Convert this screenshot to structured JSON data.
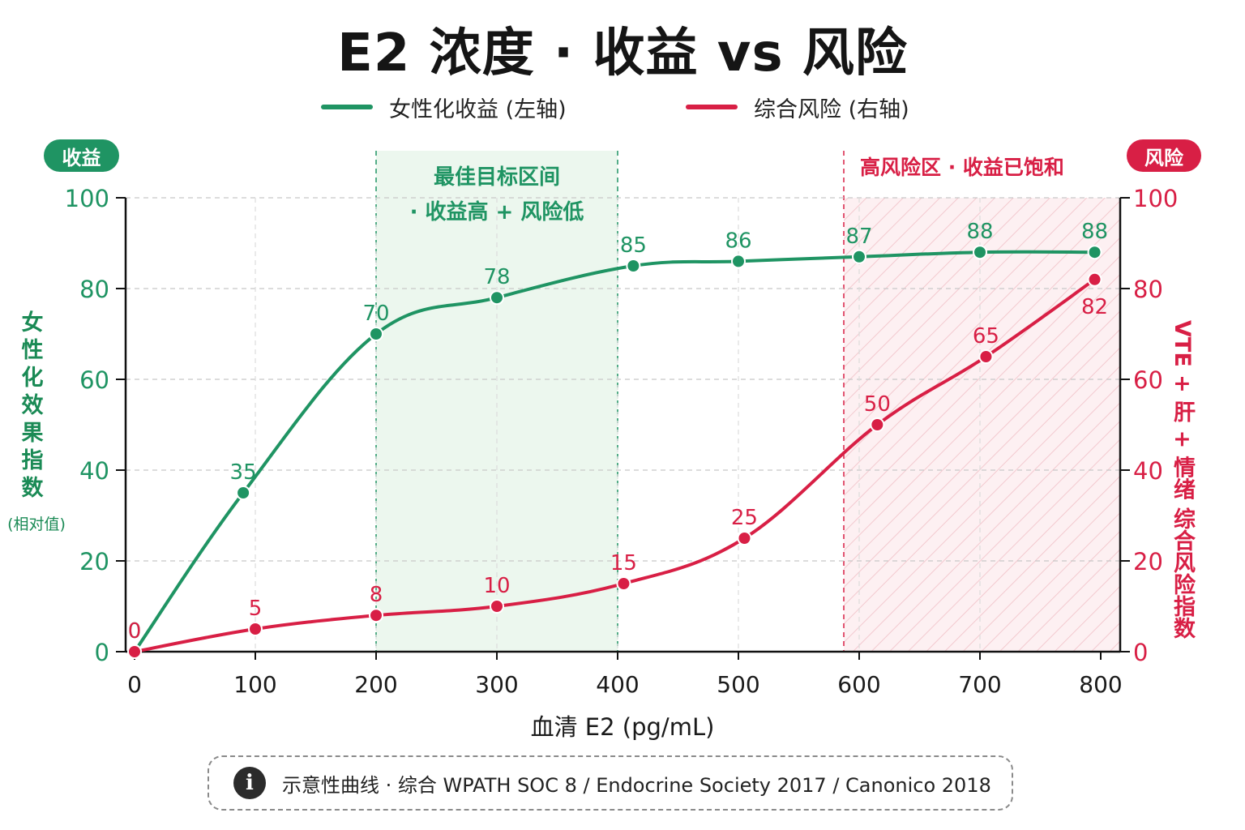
{
  "title": "E2 浓度 · 收益 vs 风险",
  "legend": [
    {
      "label": "女性化收益 (左轴)",
      "color": "#1f9463"
    },
    {
      "label": "综合风险 (右轴)",
      "color": "#d81f45"
    }
  ],
  "badges": {
    "left": "收益",
    "right": "风险"
  },
  "zones": {
    "optimal": {
      "label_line1": "最佳目标区间",
      "label_line2": "· 收益高 + 风险低",
      "x_range": [
        200,
        400
      ]
    },
    "high_risk": {
      "label": "高风险区 · 收益已饱和",
      "x_range": [
        600,
        800
      ]
    }
  },
  "y_left_title": "女性化效果指数",
  "y_left_subtitle": "(相对值)",
  "y_right_title": "VTE + 肝 + 情绪 综合风险指数",
  "x_title": "血清 E2 (pg/mL)",
  "note": "示意性曲线 · 综合 WPATH SOC 8 / Endocrine Society 2017 / Canonico 2018",
  "chart_data": {
    "type": "line",
    "title": "E2 浓度 · 收益 vs 风险",
    "xlabel": "血清 E2 (pg/mL)",
    "ylabel": "女性化效果指数 (相对值)",
    "y2label": "VTE + 肝 + 情绪 综合风险指数",
    "xlim": [
      0,
      800
    ],
    "ylim": [
      0,
      100
    ],
    "y2lim": [
      0,
      100
    ],
    "x_ticks": [
      0,
      100,
      200,
      300,
      400,
      500,
      600,
      700,
      800
    ],
    "y_ticks": [
      0,
      20,
      40,
      60,
      80,
      100
    ],
    "grid": true,
    "legend_position": "top-center",
    "series": [
      {
        "name": "女性化收益 (左轴)",
        "axis": "left",
        "color": "#1f9463",
        "x": [
          0,
          90,
          200,
          300,
          413,
          500,
          600,
          700,
          795
        ],
        "y": [
          0,
          35,
          70,
          78,
          85,
          86,
          87,
          88,
          88
        ]
      },
      {
        "name": "综合风险 (右轴)",
        "axis": "right",
        "color": "#d81f45",
        "x": [
          0,
          100,
          200,
          300,
          405,
          505,
          615,
          705,
          795
        ],
        "y": [
          0,
          5,
          8,
          10,
          15,
          25,
          50,
          65,
          82
        ]
      }
    ]
  }
}
